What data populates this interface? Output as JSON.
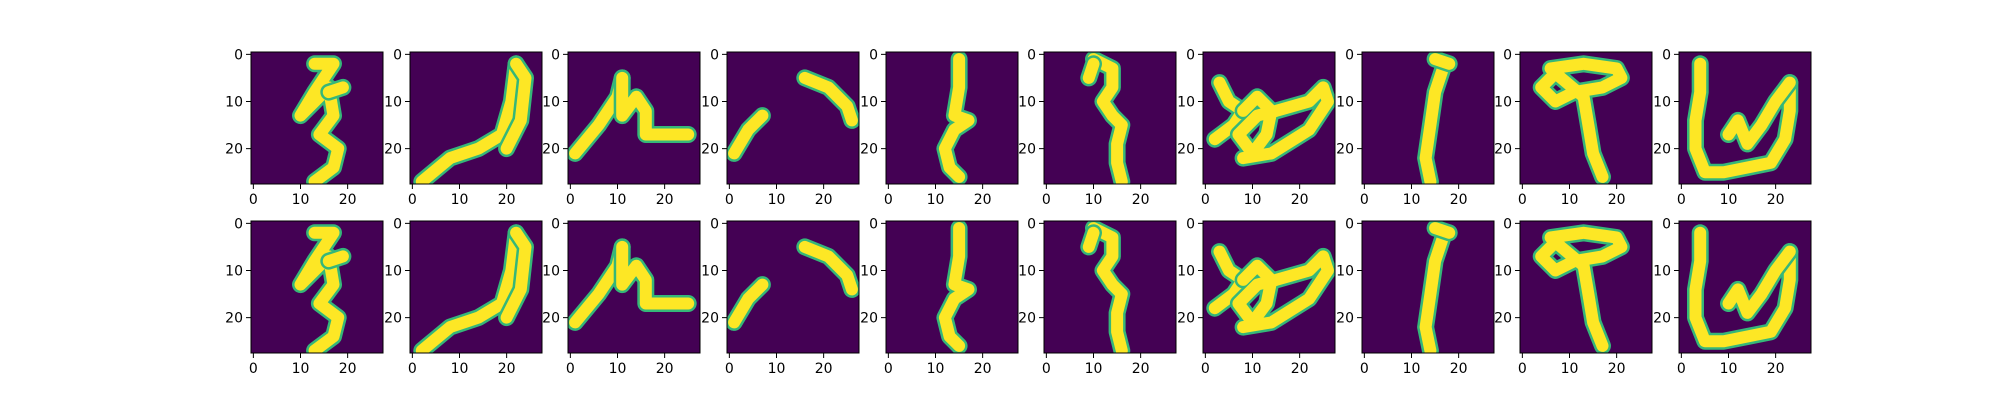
{
  "chart_data": {
    "type": "image-grid",
    "title": "",
    "colormap": "viridis",
    "image_size": [
      28,
      28
    ],
    "rows": 2,
    "cols": 10,
    "row_roles": [
      "original",
      "reconstruction"
    ],
    "x_ticks": [
      0,
      10,
      20
    ],
    "y_ticks": [
      0,
      10,
      20
    ],
    "xlim": [
      -0.5,
      27.5
    ],
    "ylim": [
      27.5,
      -0.5
    ],
    "background_color": "#440154",
    "stroke_color": "#fde725",
    "edge_color": "#35b779",
    "panels": [
      {
        "strokes": [
          [
            [
              13,
              2
            ],
            [
              17,
              2
            ],
            [
              13,
              8
            ],
            [
              10,
              13
            ],
            [
              16,
              7
            ],
            [
              17,
              13
            ],
            [
              14,
              17
            ],
            [
              18,
              20
            ],
            [
              17,
              24
            ],
            [
              13,
              27
            ]
          ],
          [
            [
              16,
              8
            ],
            [
              19,
              7
            ]
          ]
        ]
      },
      {
        "strokes": [
          [
            [
              2,
              27
            ],
            [
              8,
              22
            ],
            [
              14,
              20
            ],
            [
              19,
              17
            ],
            [
              21,
              10
            ],
            [
              22,
              2
            ]
          ],
          [
            [
              22,
              2
            ],
            [
              24,
              5
            ],
            [
              23,
              14
            ],
            [
              20,
              20
            ]
          ]
        ]
      },
      {
        "strokes": [
          [
            [
              1,
              21
            ],
            [
              6,
              15
            ],
            [
              10,
              9
            ],
            [
              11,
              5
            ]
          ],
          [
            [
              11,
              5
            ],
            [
              11,
              13
            ],
            [
              14,
              9
            ],
            [
              16,
              12
            ],
            [
              16,
              17
            ],
            [
              21,
              17
            ],
            [
              25,
              17
            ]
          ]
        ]
      },
      {
        "strokes": [
          [
            [
              1,
              21
            ],
            [
              4,
              16
            ],
            [
              7,
              13
            ]
          ],
          [
            [
              16,
              5
            ],
            [
              21,
              7
            ],
            [
              25,
              11
            ],
            [
              26,
              14
            ]
          ]
        ]
      },
      {
        "strokes": [
          [
            [
              15,
              1
            ],
            [
              15,
              7
            ],
            [
              14,
              13
            ],
            [
              17,
              14
            ],
            [
              14,
              16
            ],
            [
              12,
              20
            ],
            [
              13,
              24
            ],
            [
              15,
              26
            ]
          ]
        ]
      },
      {
        "strokes": [
          [
            [
              10,
              1
            ],
            [
              14,
              3
            ],
            [
              14,
              7
            ],
            [
              12,
              10
            ],
            [
              14,
              13
            ],
            [
              16,
              15
            ],
            [
              15,
              19
            ],
            [
              15,
              23
            ],
            [
              16,
              27
            ]
          ],
          [
            [
              10,
              2
            ],
            [
              9,
              5
            ]
          ]
        ]
      },
      {
        "strokes": [
          [
            [
              3,
              6
            ],
            [
              5,
              10
            ],
            [
              8,
              12
            ],
            [
              6,
              15
            ],
            [
              2,
              18
            ]
          ],
          [
            [
              8,
              12
            ],
            [
              11,
              9
            ],
            [
              14,
              12
            ],
            [
              13,
              17
            ],
            [
              10,
              21
            ],
            [
              7,
              17
            ],
            [
              11,
              13
            ],
            [
              15,
              12
            ],
            [
              22,
              10
            ],
            [
              25,
              7
            ],
            [
              26,
              10
            ],
            [
              22,
              16
            ],
            [
              14,
              21
            ],
            [
              8,
              22
            ]
          ]
        ]
      },
      {
        "strokes": [
          [
            [
              17,
              2
            ],
            [
              15,
              8
            ],
            [
              14,
              15
            ],
            [
              13,
              22
            ],
            [
              14,
              27
            ]
          ],
          [
            [
              15,
              1
            ],
            [
              18,
              2
            ]
          ]
        ]
      },
      {
        "strokes": [
          [
            [
              6,
              3
            ],
            [
              13,
              2
            ],
            [
              20,
              3
            ],
            [
              21,
              5
            ],
            [
              17,
              7
            ],
            [
              11,
              8
            ],
            [
              7,
              10
            ],
            [
              4,
              7
            ],
            [
              7,
              4
            ],
            [
              13,
              9
            ],
            [
              14,
              15
            ],
            [
              15,
              21
            ],
            [
              17,
              26
            ]
          ]
        ]
      },
      {
        "strokes": [
          [
            [
              4,
              2
            ],
            [
              4,
              8
            ],
            [
              3,
              14
            ],
            [
              3,
              20
            ],
            [
              5,
              25
            ],
            [
              9,
              25
            ],
            [
              14,
              24
            ],
            [
              19,
              23
            ],
            [
              22,
              18
            ],
            [
              23,
              12
            ],
            [
              23,
              6
            ]
          ],
          [
            [
              23,
              6
            ],
            [
              20,
              10
            ],
            [
              17,
              15
            ],
            [
              14,
              19
            ],
            [
              12,
              14
            ],
            [
              10,
              17
            ]
          ]
        ]
      },
      {
        "strokes": [
          [
            [
              13,
              2
            ],
            [
              17,
              2
            ],
            [
              13,
              8
            ],
            [
              10,
              13
            ],
            [
              16,
              7
            ],
            [
              17,
              13
            ],
            [
              14,
              17
            ],
            [
              18,
              20
            ],
            [
              17,
              24
            ],
            [
              13,
              27
            ]
          ],
          [
            [
              16,
              8
            ],
            [
              19,
              7
            ]
          ]
        ]
      },
      {
        "strokes": [
          [
            [
              2,
              27
            ],
            [
              8,
              22
            ],
            [
              14,
              20
            ],
            [
              19,
              17
            ],
            [
              21,
              10
            ],
            [
              22,
              2
            ]
          ],
          [
            [
              22,
              2
            ],
            [
              24,
              5
            ],
            [
              23,
              14
            ],
            [
              20,
              20
            ]
          ]
        ]
      },
      {
        "strokes": [
          [
            [
              1,
              21
            ],
            [
              6,
              15
            ],
            [
              10,
              9
            ],
            [
              11,
              5
            ]
          ],
          [
            [
              11,
              5
            ],
            [
              11,
              13
            ],
            [
              14,
              9
            ],
            [
              16,
              12
            ],
            [
              16,
              17
            ],
            [
              21,
              17
            ],
            [
              25,
              17
            ]
          ]
        ]
      },
      {
        "strokes": [
          [
            [
              1,
              21
            ],
            [
              4,
              16
            ],
            [
              7,
              13
            ]
          ],
          [
            [
              16,
              5
            ],
            [
              21,
              7
            ],
            [
              25,
              11
            ],
            [
              26,
              14
            ]
          ]
        ]
      },
      {
        "strokes": [
          [
            [
              15,
              1
            ],
            [
              15,
              7
            ],
            [
              14,
              13
            ],
            [
              17,
              14
            ],
            [
              14,
              16
            ],
            [
              12,
              20
            ],
            [
              13,
              24
            ],
            [
              15,
              26
            ]
          ]
        ]
      },
      {
        "strokes": [
          [
            [
              10,
              1
            ],
            [
              14,
              3
            ],
            [
              14,
              7
            ],
            [
              12,
              10
            ],
            [
              14,
              13
            ],
            [
              16,
              15
            ],
            [
              15,
              19
            ],
            [
              15,
              23
            ],
            [
              16,
              27
            ]
          ],
          [
            [
              10,
              2
            ],
            [
              9,
              5
            ]
          ]
        ]
      },
      {
        "strokes": [
          [
            [
              3,
              6
            ],
            [
              5,
              10
            ],
            [
              8,
              12
            ],
            [
              6,
              15
            ],
            [
              2,
              18
            ]
          ],
          [
            [
              8,
              12
            ],
            [
              11,
              9
            ],
            [
              14,
              12
            ],
            [
              13,
              17
            ],
            [
              10,
              21
            ],
            [
              7,
              17
            ],
            [
              11,
              13
            ],
            [
              15,
              12
            ],
            [
              22,
              10
            ],
            [
              25,
              7
            ],
            [
              26,
              10
            ],
            [
              22,
              16
            ],
            [
              14,
              21
            ],
            [
              8,
              22
            ]
          ]
        ]
      },
      {
        "strokes": [
          [
            [
              17,
              2
            ],
            [
              15,
              8
            ],
            [
              14,
              15
            ],
            [
              13,
              22
            ],
            [
              14,
              27
            ]
          ],
          [
            [
              15,
              1
            ],
            [
              18,
              2
            ]
          ]
        ]
      },
      {
        "strokes": [
          [
            [
              6,
              3
            ],
            [
              13,
              2
            ],
            [
              20,
              3
            ],
            [
              21,
              5
            ],
            [
              17,
              7
            ],
            [
              11,
              8
            ],
            [
              7,
              10
            ],
            [
              4,
              7
            ],
            [
              7,
              4
            ],
            [
              13,
              9
            ],
            [
              14,
              15
            ],
            [
              15,
              21
            ],
            [
              17,
              26
            ]
          ]
        ]
      },
      {
        "strokes": [
          [
            [
              4,
              2
            ],
            [
              4,
              8
            ],
            [
              3,
              14
            ],
            [
              3,
              20
            ],
            [
              5,
              25
            ],
            [
              9,
              25
            ],
            [
              14,
              24
            ],
            [
              19,
              23
            ],
            [
              22,
              18
            ],
            [
              23,
              12
            ],
            [
              23,
              6
            ]
          ],
          [
            [
              23,
              6
            ],
            [
              20,
              10
            ],
            [
              17,
              15
            ],
            [
              14,
              19
            ],
            [
              12,
              14
            ],
            [
              10,
              17
            ]
          ]
        ]
      }
    ]
  }
}
